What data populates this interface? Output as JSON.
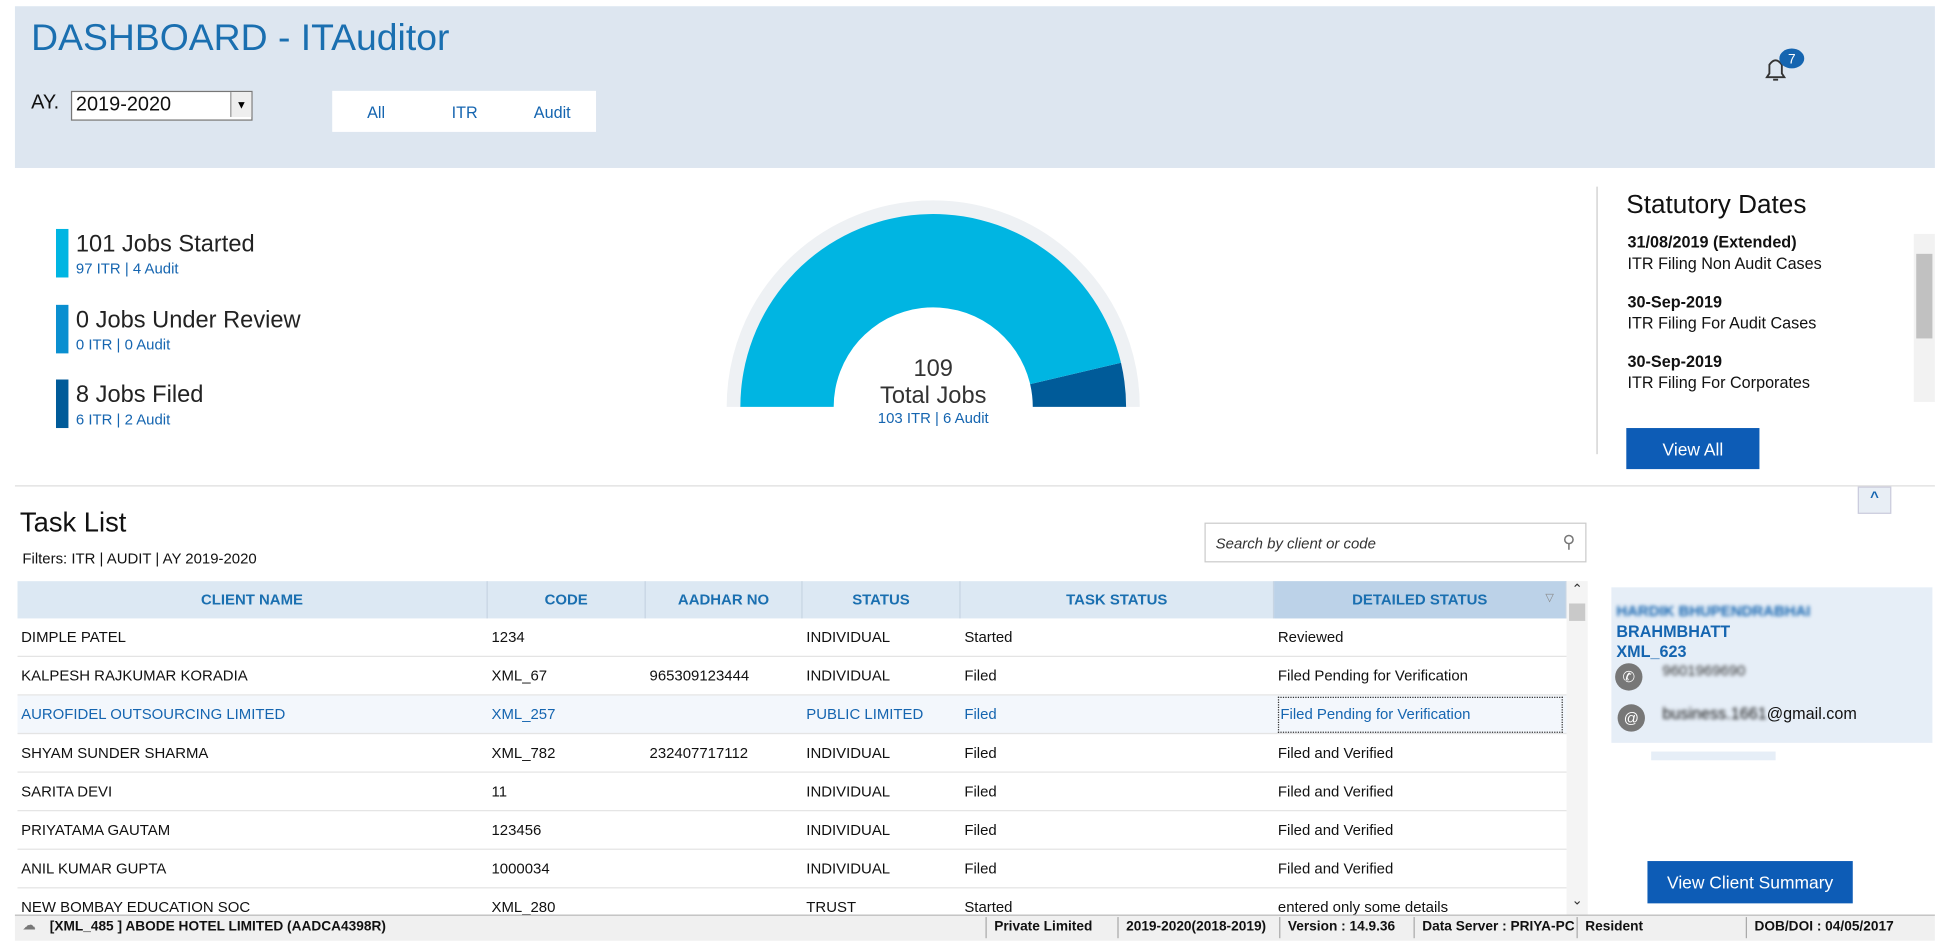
{
  "header": {
    "title": "DASHBOARD - ITAuditor",
    "ay_label": "AY.",
    "ay_value": "2019-2020",
    "tabs": [
      "All",
      "ITR",
      "Audit"
    ],
    "notifications": 7
  },
  "summary": {
    "jobs": [
      {
        "count": 101,
        "label": "Jobs Started",
        "detail": "97 ITR | 4 Audit",
        "color": "#00b5e2"
      },
      {
        "count": 0,
        "label": "Jobs Under Review",
        "detail": "0 ITR | 0 Audit",
        "color": "#0a8fd0"
      },
      {
        "count": 8,
        "label": "Jobs Filed",
        "detail": "6 ITR | 2 Audit",
        "color": "#005b99"
      }
    ],
    "total": 109,
    "total_label": "Total Jobs",
    "total_detail": "103 ITR | 6 Audit"
  },
  "statutory": {
    "title": "Statutory Dates",
    "entries": [
      {
        "date": "31/08/2019 (Extended)",
        "text": "ITR Filing Non Audit Cases"
      },
      {
        "date": "30-Sep-2019",
        "text": "ITR Filing For Audit Cases"
      },
      {
        "date": "30-Sep-2019",
        "text": "ITR Filing For Corporates"
      }
    ],
    "button": "View All"
  },
  "tasks": {
    "title": "Task List",
    "filters": "Filters: ITR | AUDIT | AY 2019-2020",
    "search_placeholder": "Search by client or code",
    "columns": [
      "CLIENT NAME",
      "CODE",
      "AADHAR NO",
      "STATUS",
      "TASK STATUS",
      "DETAILED STATUS"
    ],
    "rows": [
      [
        "DIMPLE PATEL",
        "1234",
        "",
        "INDIVIDUAL",
        "Started",
        "Reviewed"
      ],
      [
        "KALPESH RAJKUMAR KORADIA",
        "XML_67",
        "965309123444",
        "INDIVIDUAL",
        "Filed",
        "Filed Pending for Verification"
      ],
      [
        "AUROFIDEL OUTSOURCING LIMITED",
        "XML_257",
        "",
        "PUBLIC LIMITED",
        "Filed",
        "Filed Pending for Verification"
      ],
      [
        "SHYAM SUNDER SHARMA",
        "XML_782",
        "232407717112",
        "INDIVIDUAL",
        "Filed",
        "Filed and Verified"
      ],
      [
        "SARITA DEVI",
        "11",
        "",
        "INDIVIDUAL",
        "Filed",
        "Filed and Verified"
      ],
      [
        "PRIYATAMA GAUTAM",
        "123456",
        "",
        "INDIVIDUAL",
        "Filed",
        "Filed and Verified"
      ],
      [
        "ANIL KUMAR GUPTA",
        "1000034",
        "",
        "INDIVIDUAL",
        "Filed",
        "Filed and Verified"
      ],
      [
        "NEW BOMBAY EDUCATION SOC",
        "XML_280",
        "",
        "TRUST",
        "Started",
        "entered only some details"
      ]
    ]
  },
  "client": {
    "name_line1": "HARDIK BHUPENDRABHAI",
    "name_line2": "BRAHMBHATT",
    "code": "XML_623",
    "phone": "9601969690",
    "email_user": "business.1661",
    "email_domain": "@gmail.com",
    "button": "View Client Summary"
  },
  "status_bar": {
    "client": "[XML_485 ] ABODE HOTEL LIMITED (AADCA4398R)",
    "fields": [
      "Private Limited",
      "2019-2020(2018-2019)",
      "Version : 14.9.36",
      "Data Server : PRIYA-PC",
      "Resident",
      "DOB/DOI : 04/05/2017"
    ]
  }
}
